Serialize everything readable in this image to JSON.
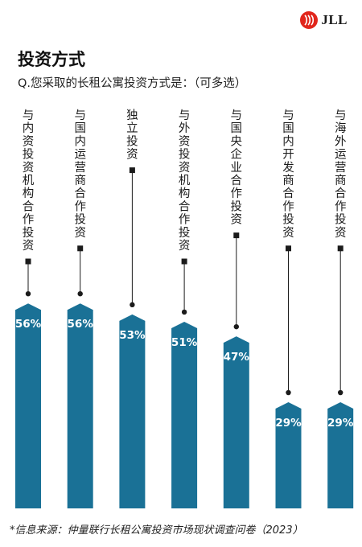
{
  "header": {
    "brand": "JLL",
    "title": "投资方式",
    "subtitle": "Q.您采取的长租公寓投资方式是：（可多选）"
  },
  "footer": {
    "source": "*信息来源：仲量联行长租公寓投资市场现状调查问卷（2023）"
  },
  "colors": {
    "bar": "#1a7196",
    "brand_red": "#e1261c",
    "text": "#111111"
  },
  "chart_data": {
    "type": "bar",
    "categories": [
      "与内资投资机构合作投资",
      "与国内运营商合作投资",
      "独立投资",
      "与外资投资机构合作投资",
      "与国央企业合作投资",
      "与国内开发商合作投资",
      "与海外运营商合作投资"
    ],
    "values": [
      56,
      56,
      53,
      51,
      47,
      29,
      29
    ],
    "value_labels": [
      "56%",
      "56%",
      "53%",
      "51%",
      "47%",
      "29%",
      "29%"
    ],
    "unit": "%",
    "ylim": [
      0,
      100
    ],
    "grid": false,
    "legend": "none"
  }
}
